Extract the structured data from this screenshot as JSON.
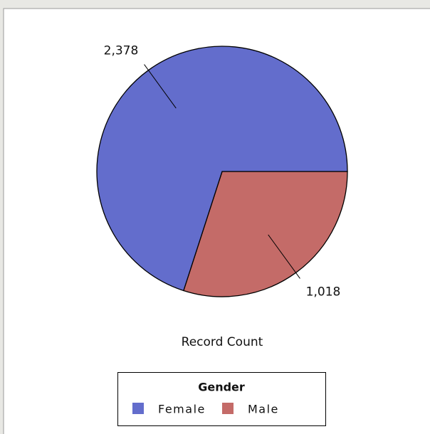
{
  "chart_data": {
    "type": "pie",
    "categories": [
      "Female",
      "Male"
    ],
    "values": [
      2378,
      1018
    ],
    "value_labels": [
      "2,378",
      "1,018"
    ],
    "colors": [
      "#636dcc",
      "#c46b68"
    ],
    "title": "Record Count",
    "legend_title": "Gender",
    "start_angle": 0,
    "direction": "counterclockwise-from-male"
  }
}
